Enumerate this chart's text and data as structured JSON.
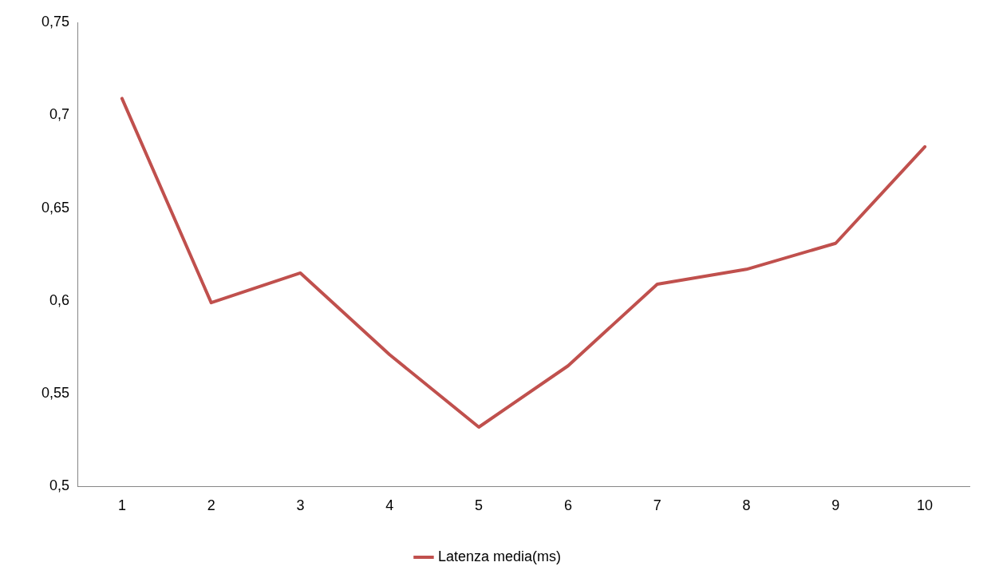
{
  "chart_data": {
    "type": "line",
    "categories": [
      "1",
      "2",
      "3",
      "4",
      "5",
      "6",
      "7",
      "8",
      "9",
      "10"
    ],
    "series": [
      {
        "name": "Latenza media(ms)",
        "color": "#c0504d",
        "values": [
          0.709,
          0.599,
          0.615,
          0.571,
          0.532,
          0.565,
          0.609,
          0.617,
          0.631,
          0.683
        ]
      }
    ],
    "ylim": [
      0.5,
      0.75
    ],
    "yticks": [
      {
        "value": 0.5,
        "label": "0,5"
      },
      {
        "value": 0.55,
        "label": "0,55"
      },
      {
        "value": 0.6,
        "label": "0,6"
      },
      {
        "value": 0.65,
        "label": "0,65"
      },
      {
        "value": 0.7,
        "label": "0,7"
      },
      {
        "value": 0.75,
        "label": "0,75"
      }
    ],
    "grid": false,
    "legend": "bottom",
    "marker": "none",
    "line_style": "solid"
  }
}
